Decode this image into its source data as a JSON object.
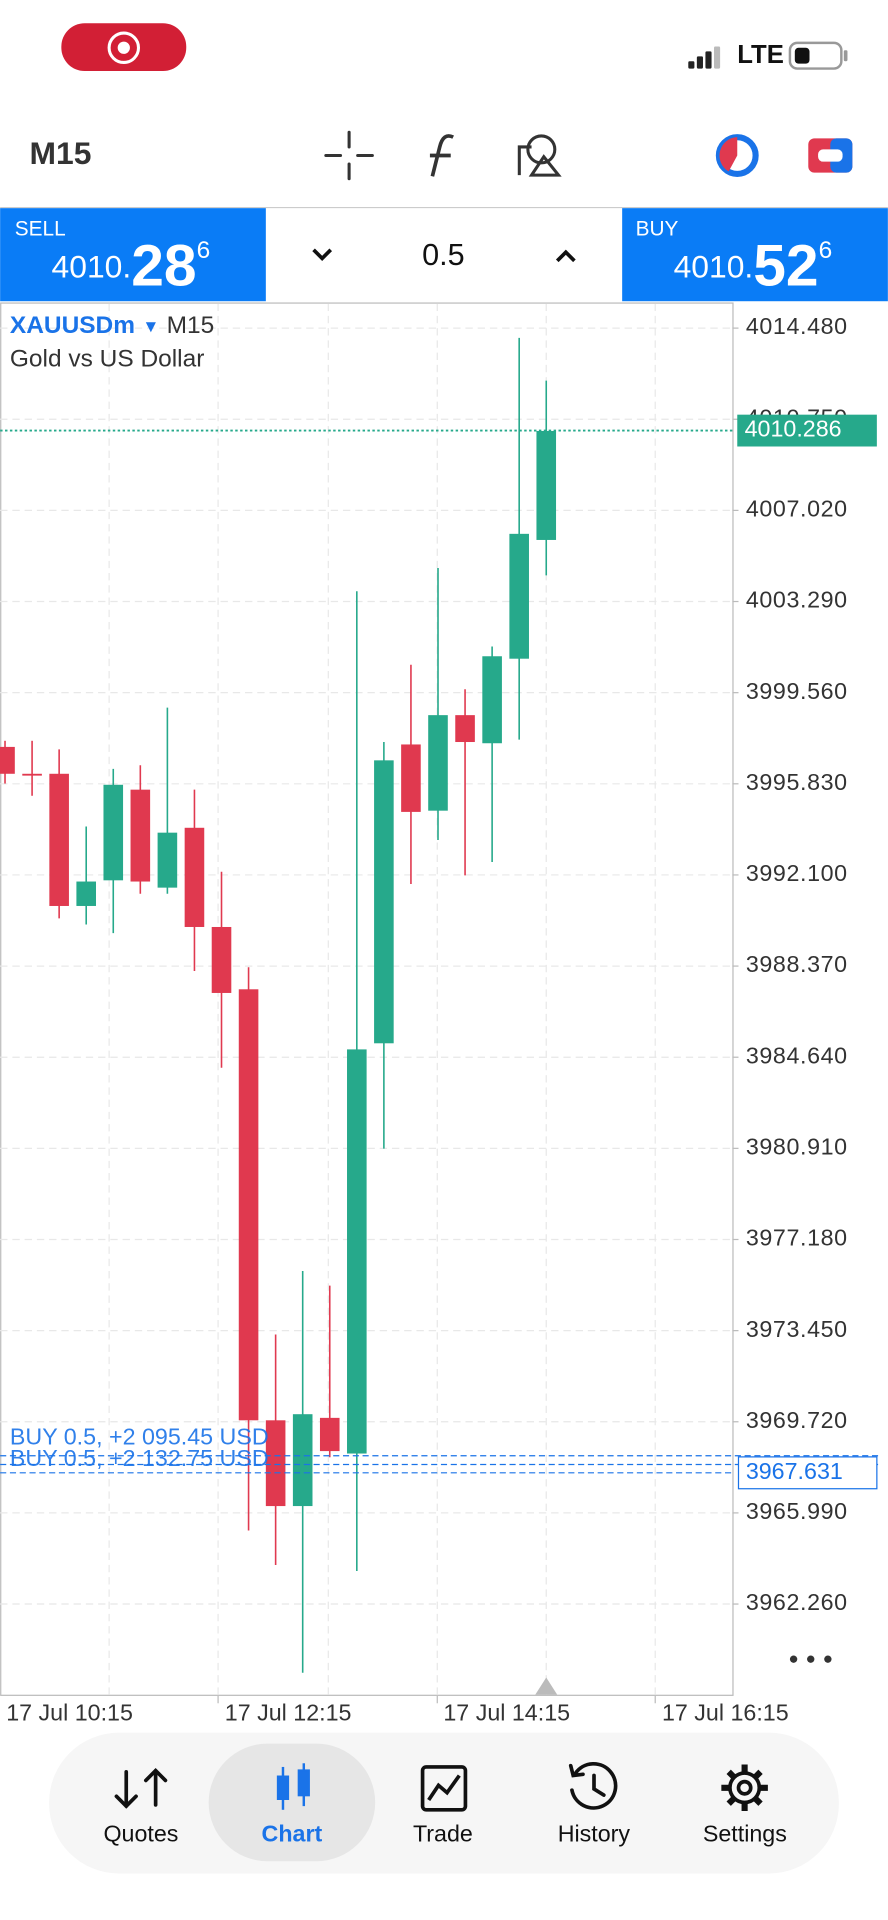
{
  "status_bar": {
    "network": "LTE"
  },
  "toolbar": {
    "timeframe": "M15"
  },
  "trade_panel": {
    "sell_label": "SELL",
    "sell_prefix": "4010.",
    "sell_big": "28",
    "sell_sup": "6",
    "volume": "0.5",
    "buy_label": "BUY",
    "buy_prefix": "4010.",
    "buy_big": "52",
    "buy_sup": "6"
  },
  "chart_data": {
    "type": "candlestick",
    "symbol": "XAUUSDm",
    "timeframe": "M15",
    "description": "Gold vs US Dollar",
    "up_color": "#26a98b",
    "down_color": "#e0394f",
    "open": [
      3997.34,
      3996.24,
      3996.24,
      3990.83,
      3991.88,
      3995.59,
      3991.58,
      3994.03,
      3989.97,
      3987.42,
      3969.78,
      3966.27,
      3969.88,
      3968.42,
      3985.21,
      3997.44,
      3994.73,
      3998.64,
      3997.49,
      4000.95,
      4005.81
    ],
    "high": [
      3997.59,
      3997.59,
      3997.24,
      3994.08,
      3996.44,
      3996.59,
      3998.95,
      3995.59,
      3992.23,
      3988.32,
      3973.29,
      3975.89,
      3975.29,
      4003.71,
      3997.54,
      4000.7,
      4004.66,
      3999.7,
      4001.45,
      4014.08,
      4012.33
    ],
    "low": [
      3995.84,
      3995.34,
      3990.32,
      3990.07,
      3989.72,
      3991.33,
      3991.33,
      3988.17,
      3984.21,
      3965.27,
      3963.86,
      3959.45,
      3968.27,
      3963.61,
      3980.9,
      3991.73,
      3993.53,
      3992.08,
      3992.63,
      3997.64,
      4004.36
    ],
    "close": [
      3996.24,
      3996.19,
      3990.83,
      3991.83,
      3995.79,
      3991.83,
      3993.83,
      3989.97,
      3987.27,
      3969.78,
      3966.27,
      3970.03,
      3968.52,
      3984.96,
      3996.79,
      3994.68,
      3998.64,
      3997.54,
      4001.05,
      4006.06,
      4010.27
    ],
    "ylim": [
      3958.5,
      4015.48
    ],
    "yticks": [
      {
        "value": 4014.48,
        "label": "4014.480"
      },
      {
        "value": 4010.75,
        "label": "4010.750"
      },
      {
        "value": 4007.02,
        "label": "4007.020"
      },
      {
        "value": 4003.29,
        "label": "4003.290"
      },
      {
        "value": 3999.56,
        "label": "3999.560"
      },
      {
        "value": 3995.83,
        "label": "3995.830"
      },
      {
        "value": 3992.1,
        "label": "3992.100"
      },
      {
        "value": 3988.37,
        "label": "3988.370"
      },
      {
        "value": 3984.64,
        "label": "3984.640"
      },
      {
        "value": 3980.91,
        "label": "3980.910"
      },
      {
        "value": 3977.18,
        "label": "3977.180"
      },
      {
        "value": 3973.45,
        "label": "3973.450"
      },
      {
        "value": 3969.72,
        "label": "3969.720"
      },
      {
        "value": 3965.99,
        "label": "3965.990"
      },
      {
        "value": 3962.26,
        "label": "3962.260"
      }
    ],
    "x_labels": [
      "17 Jul 10:15",
      "17 Jul 12:15",
      "17 Jul 14:15",
      "17 Jul 16:15"
    ],
    "grid": true,
    "current_price": {
      "value": 4010.286,
      "label": "4010.286"
    },
    "positions": [
      {
        "label": "BUY 0.5, +2 095.45 USD",
        "price": 3968.33
      },
      {
        "label": "BUY 0.5, +2 132.75 USD",
        "price": 3967.97
      }
    ],
    "bid_line": {
      "value": 3967.631,
      "label": "3967.631"
    }
  },
  "nav": {
    "items": [
      {
        "label": "Quotes",
        "active": false
      },
      {
        "label": "Chart",
        "active": true
      },
      {
        "label": "Trade",
        "active": false
      },
      {
        "label": "History",
        "active": false
      },
      {
        "label": "Settings",
        "active": false
      }
    ]
  }
}
